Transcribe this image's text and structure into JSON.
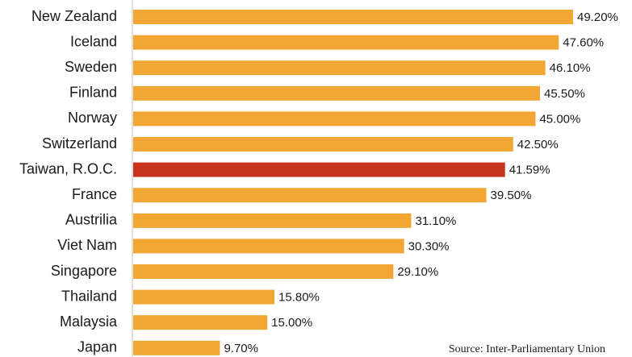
{
  "chart_data": {
    "type": "bar",
    "orientation": "horizontal",
    "categories": [
      "New Zealand",
      "Iceland",
      "Sweden",
      "Finland",
      "Norway",
      "Switzerland",
      "Taiwan, R.O.C.",
      "France",
      "Austrilia",
      "Viet Nam",
      "Singapore",
      "Thailand",
      "Malaysia",
      "Japan"
    ],
    "values": [
      49.2,
      47.6,
      46.1,
      45.5,
      45.0,
      42.5,
      41.59,
      39.5,
      31.1,
      30.3,
      29.1,
      15.8,
      15.0,
      9.7
    ],
    "value_labels": [
      "49.20%",
      "47.60%",
      "46.10%",
      "45.50%",
      "45.00%",
      "42.50%",
      "41.59%",
      "39.50%",
      "31.10%",
      "30.30%",
      "29.10%",
      "15.80%",
      "15.00%",
      "9.70%"
    ],
    "colors": [
      "#f2a633",
      "#f2a633",
      "#f2a633",
      "#f2a633",
      "#f2a633",
      "#f2a633",
      "#c9341f",
      "#f2a633",
      "#f2a633",
      "#f2a633",
      "#f2a633",
      "#f2a633",
      "#f2a633",
      "#f2a633"
    ],
    "annotation": "Source: Inter-Parliamentary Union"
  }
}
